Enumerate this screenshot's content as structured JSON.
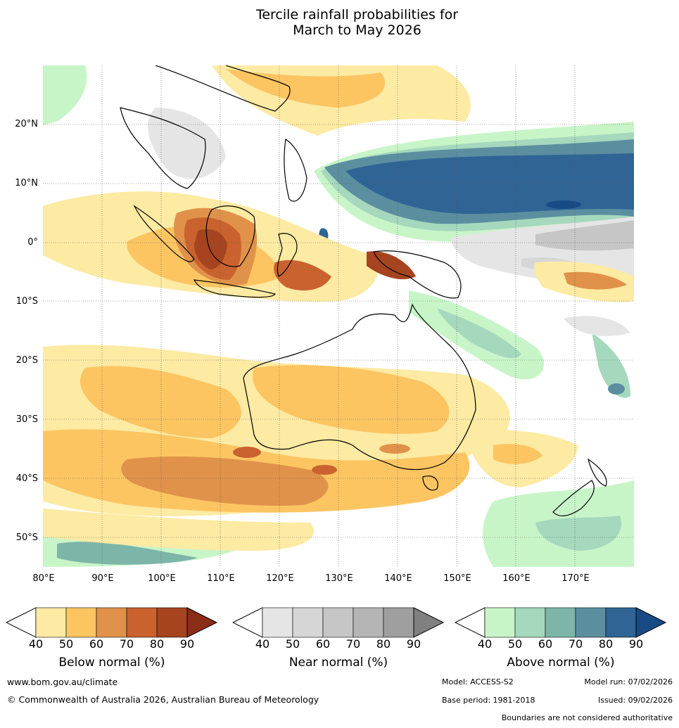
{
  "title_line1": "Tercile rainfall probabilities for",
  "title_line2": "March to May 2026",
  "axes": {
    "lat_labels": [
      "20°N",
      "10°N",
      "0°",
      "10°S",
      "20°S",
      "30°S",
      "40°S",
      "50°S"
    ],
    "lon_labels": [
      "80°E",
      "90°E",
      "100°E",
      "110°E",
      "120°E",
      "130°E",
      "140°E",
      "150°E",
      "160°E",
      "170°E"
    ],
    "lat_range": [
      -55,
      30
    ],
    "lon_range": [
      80,
      180
    ]
  },
  "legends": [
    {
      "title": "Below normal (%)",
      "ticks": [
        "40",
        "50",
        "60",
        "70",
        "80",
        "90"
      ],
      "colors": [
        "#fdeaa3",
        "#fcc562",
        "#e0924a",
        "#c9622e",
        "#a5441f",
        "#8a2d16"
      ]
    },
    {
      "title": "Near normal (%)",
      "ticks": [
        "40",
        "50",
        "60",
        "70",
        "80",
        "90"
      ],
      "colors": [
        "#e5e5e5",
        "#d6d6d6",
        "#c6c6c6",
        "#b5b5b5",
        "#9f9f9f",
        "#808080"
      ]
    },
    {
      "title": "Above normal (%)",
      "ticks": [
        "40",
        "50",
        "60",
        "70",
        "80",
        "90"
      ],
      "colors": [
        "#c8f5c8",
        "#a5d8bd",
        "#7db6a8",
        "#5b8fa0",
        "#2f6495",
        "#184b86"
      ]
    }
  ],
  "footer": {
    "website": "www.bom.gov.au/climate",
    "copyright": "© Commonwealth of Australia 2026, Australian Bureau of Meteorology",
    "model": "Model: ACCESS-S2",
    "model_run": "Model run: 07/02/2026",
    "base_period": "Base period: 1981-2018",
    "issued": "Issued: 09/02/2026",
    "disclaimer": "Boundaries are not considered authoritative"
  }
}
